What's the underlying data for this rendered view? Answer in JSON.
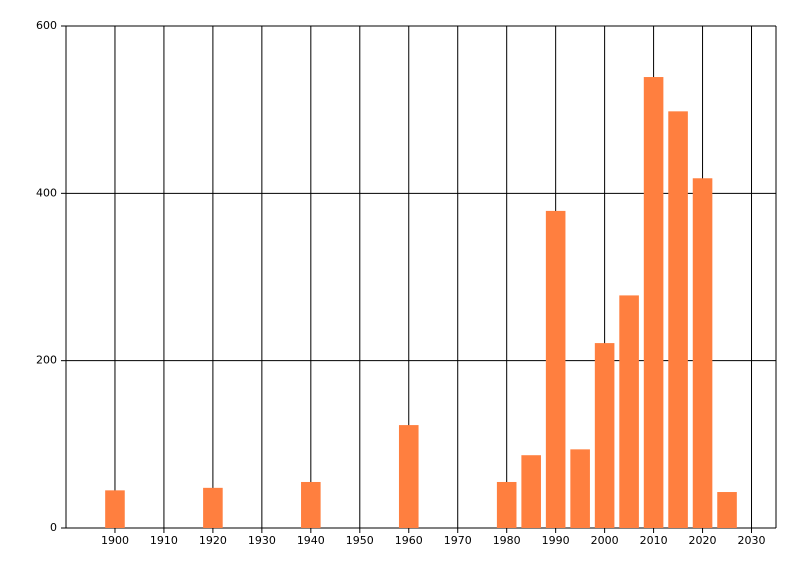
{
  "chart_data": {
    "type": "bar",
    "x": [
      1900,
      1920,
      1940,
      1960,
      1980,
      1985,
      1990,
      1995,
      2000,
      2005,
      2010,
      2015,
      2020,
      2025
    ],
    "values": [
      45,
      48,
      55,
      123,
      55,
      87,
      379,
      94,
      221,
      278,
      539,
      498,
      418,
      43
    ],
    "color": "#ff7f3f",
    "xlim": [
      1890,
      2035
    ],
    "xticks": [
      1900,
      1910,
      1920,
      1930,
      1940,
      1950,
      1960,
      1970,
      1980,
      1990,
      2000,
      2010,
      2020,
      2030
    ],
    "ylim": [
      0,
      600
    ],
    "yticks": [
      0,
      200,
      400,
      600
    ],
    "grid": true
  }
}
